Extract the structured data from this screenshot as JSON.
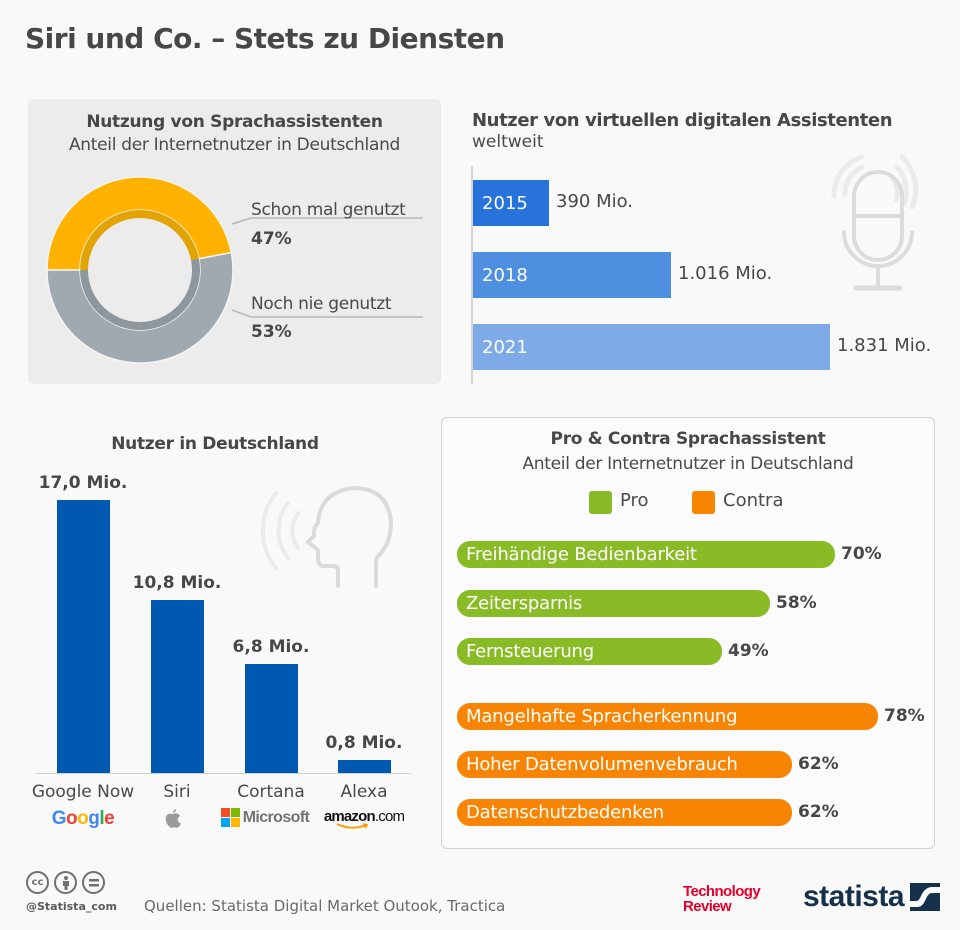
{
  "title": "Siri und Co. – Stets zu Diensten",
  "colors": {
    "yes": "#ffb300",
    "yes_inner": "#e2a304",
    "no": "#a1a9b0",
    "no_inner": "#8f979e",
    "ww_bars": [
      "#2873db",
      "#4f8fe0",
      "#7eabe8"
    ],
    "de_bar": "#0059b0",
    "pro": "#88bb26",
    "contra": "#f78402"
  },
  "chart_data": [
    {
      "type": "pie",
      "title": "Nutzung von Sprachassistenten",
      "subtitle": "Anteil der Internetnutzer in Deutschland",
      "donut": true,
      "slices": [
        {
          "label": "Schon mal genutzt",
          "value": 47,
          "display": "47%"
        },
        {
          "label": "Noch nie genutzt",
          "value": 53,
          "display": "53%"
        }
      ]
    },
    {
      "type": "bar",
      "orientation": "horizontal",
      "title": "Nutzer von virtuellen digitalen Assistenten",
      "subtitle": "weltweit",
      "categories": [
        "2015",
        "2018",
        "2021"
      ],
      "values": [
        390,
        1016,
        1831
      ],
      "value_labels": [
        "390 Mio.",
        "1.016 Mio.",
        "1.831 Mio."
      ],
      "unit": "Mio.",
      "xlim": [
        0,
        1831
      ]
    },
    {
      "type": "bar",
      "orientation": "vertical",
      "title": "Nutzer in Deutschland",
      "categories": [
        "Google Now",
        "Siri",
        "Cortana",
        "Alexa"
      ],
      "brands": [
        "Google",
        "Apple",
        "Microsoft",
        "amazon.com"
      ],
      "values": [
        17.0,
        10.8,
        6.8,
        0.8
      ],
      "value_labels": [
        "17,0 Mio.",
        "10,8 Mio.",
        "6,8 Mio.",
        "0,8 Mio."
      ],
      "unit": "Mio.",
      "ylim": [
        0,
        17
      ]
    },
    {
      "type": "bar",
      "orientation": "horizontal",
      "title": "Pro & Contra Sprachassistent",
      "subtitle": "Anteil der Internetnutzer in Deutschland",
      "legend": [
        "Pro",
        "Contra"
      ],
      "legend_position": "top-center",
      "series": [
        {
          "name": "Pro",
          "categories": [
            "Freihändige Bedienbarkeit",
            "Zeitersparnis",
            "Fernsteuerung"
          ],
          "values": [
            70,
            58,
            49
          ],
          "value_labels": [
            "70%",
            "58%",
            "49%"
          ]
        },
        {
          "name": "Contra",
          "categories": [
            "Mangelhafte Spracherkennung",
            "Hoher Datenvolumenvebrauch",
            "Datenschutzbedenken"
          ],
          "values": [
            78,
            62,
            62
          ],
          "value_labels": [
            "78%",
            "62%",
            "62%"
          ]
        }
      ],
      "xlim": [
        0,
        100
      ]
    }
  ],
  "footer": {
    "handle": "@Statista_com",
    "sources": "Quellen: Statista Digital Market Outook, Tractica",
    "tr_line1": "Technology",
    "tr_line2": "Review",
    "statista": "statista",
    "cc_icons": [
      "cc-icon",
      "by-icon",
      "nd-icon"
    ]
  }
}
